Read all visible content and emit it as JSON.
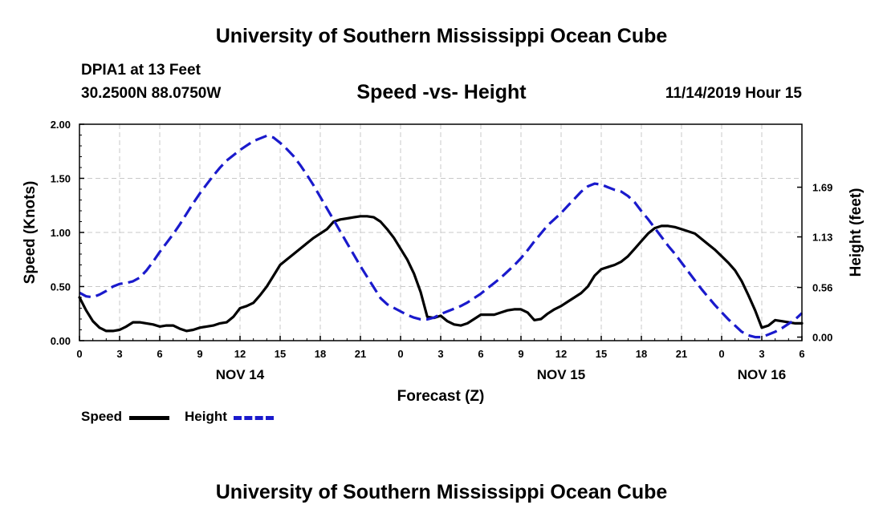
{
  "header": {
    "top_title": "University of Southern Mississippi Ocean Cube",
    "bottom_title": "University of Southern Mississippi Ocean Cube",
    "station": "DPIA1 at 13 Feet",
    "coords": "30.2500N 88.0750W",
    "chart_title": "Speed -vs- Height",
    "run_time": "11/14/2019 Hour 15"
  },
  "legend": {
    "speed_label": "Speed",
    "height_label": "Height"
  },
  "colors": {
    "speed": "#000000",
    "height": "#1a1acc",
    "grid": "#c8c8c8"
  },
  "chart_data": {
    "type": "line",
    "title": "Speed -vs- Height",
    "xlabel": "Forecast (Z)",
    "ylabel": "Speed (Knots)",
    "ylabel_right": "Height (feet)",
    "xlim": [
      0,
      54
    ],
    "ylim": [
      0,
      2.0
    ],
    "ylim_right": [
      -0.04,
      2.4
    ],
    "grid": true,
    "x_ticks": [
      0,
      3,
      6,
      9,
      12,
      15,
      18,
      21,
      24,
      27,
      30,
      33,
      36,
      39,
      42,
      45,
      48,
      51,
      54
    ],
    "x_tick_labels": [
      "0",
      "3",
      "6",
      "9",
      "12",
      "15",
      "18",
      "21",
      "0",
      "3",
      "6",
      "9",
      "12",
      "15",
      "18",
      "21",
      "0",
      "3",
      "6"
    ],
    "date_labels": [
      {
        "x": 12,
        "text": "NOV 14"
      },
      {
        "x": 36,
        "text": "NOV 15"
      },
      {
        "x": 51,
        "text": "NOV 16"
      }
    ],
    "y_ticks": [
      0,
      0.5,
      1.0,
      1.5,
      2.0
    ],
    "y_tick_labels": [
      "0.00",
      "0.50",
      "1.00",
      "1.50",
      "2.00"
    ],
    "y2_ticks": [
      0,
      0.56,
      1.13,
      1.69
    ],
    "y2_tick_labels": [
      "0.00",
      "0.56",
      "1.13",
      "1.69"
    ],
    "series": [
      {
        "name": "Speed",
        "axis": "left",
        "style": "solid",
        "x": [
          0,
          0.5,
          1,
          1.5,
          2,
          2.5,
          3,
          3.5,
          4,
          4.5,
          5,
          5.5,
          6,
          6.5,
          7,
          7.5,
          8,
          8.5,
          9,
          9.5,
          10,
          10.5,
          11,
          11.5,
          12,
          12.5,
          13,
          13.5,
          14,
          14.5,
          15,
          15.5,
          16,
          16.5,
          17,
          17.5,
          18,
          18.5,
          19,
          19.5,
          20,
          20.5,
          21,
          21.5,
          22,
          22.5,
          23,
          23.5,
          24,
          24.5,
          25,
          25.5,
          26,
          26.5,
          27,
          27.5,
          28,
          28.5,
          29,
          29.5,
          30,
          30.5,
          31,
          31.5,
          32,
          32.5,
          33,
          33.5,
          34,
          34.5,
          35,
          35.5,
          36,
          36.5,
          37,
          37.5,
          38,
          38.5,
          39,
          39.5,
          40,
          40.5,
          41,
          41.5,
          42,
          42.5,
          43,
          43.5,
          44,
          44.5,
          45,
          45.5,
          46,
          46.5,
          47,
          47.5,
          48,
          48.5,
          49,
          49.5,
          50,
          50.5,
          51,
          51.5,
          52,
          52.5,
          53,
          53.5,
          54
        ],
        "values": [
          0.4,
          0.28,
          0.18,
          0.12,
          0.09,
          0.09,
          0.1,
          0.13,
          0.17,
          0.17,
          0.16,
          0.15,
          0.13,
          0.14,
          0.14,
          0.11,
          0.09,
          0.1,
          0.12,
          0.13,
          0.14,
          0.16,
          0.17,
          0.22,
          0.3,
          0.32,
          0.35,
          0.42,
          0.5,
          0.6,
          0.7,
          0.75,
          0.8,
          0.85,
          0.9,
          0.95,
          0.99,
          1.03,
          1.1,
          1.12,
          1.13,
          1.14,
          1.15,
          1.15,
          1.14,
          1.1,
          1.03,
          0.95,
          0.85,
          0.75,
          0.62,
          0.45,
          0.22,
          0.21,
          0.23,
          0.18,
          0.15,
          0.14,
          0.16,
          0.2,
          0.24,
          0.24,
          0.24,
          0.26,
          0.28,
          0.29,
          0.29,
          0.26,
          0.19,
          0.2,
          0.25,
          0.29,
          0.32,
          0.36,
          0.4,
          0.44,
          0.5,
          0.6,
          0.66,
          0.68,
          0.7,
          0.73,
          0.78,
          0.85,
          0.92,
          0.99,
          1.04,
          1.06,
          1.06,
          1.05,
          1.03,
          1.01,
          0.99,
          0.94,
          0.89,
          0.84,
          0.78,
          0.72,
          0.65,
          0.55,
          0.42,
          0.28,
          0.12,
          0.14,
          0.19,
          0.18,
          0.17,
          0.16,
          0.16
        ]
      },
      {
        "name": "Height",
        "axis": "right",
        "style": "dashed",
        "x": [
          0,
          0.5,
          1,
          1.5,
          2,
          2.5,
          3,
          3.5,
          4,
          4.5,
          5,
          5.5,
          6,
          6.5,
          7,
          7.5,
          8,
          8.5,
          9,
          9.5,
          10,
          10.5,
          11,
          11.5,
          12,
          12.5,
          13,
          13.5,
          14,
          14.5,
          15,
          15.5,
          16,
          16.5,
          17,
          17.5,
          18,
          18.5,
          19,
          19.5,
          20,
          20.5,
          21,
          21.5,
          22,
          22.5,
          23,
          23.5,
          24,
          24.5,
          25,
          25.5,
          26,
          26.5,
          27,
          27.5,
          28,
          28.5,
          29,
          29.5,
          30,
          30.5,
          31,
          31.5,
          32,
          32.5,
          33,
          33.5,
          34,
          34.5,
          35,
          35.5,
          36,
          36.5,
          37,
          37.5,
          38,
          38.5,
          39,
          39.5,
          40,
          40.5,
          41,
          41.5,
          42,
          42.5,
          43,
          43.5,
          44,
          44.5,
          45,
          45.5,
          46,
          46.5,
          47,
          47.5,
          48,
          48.5,
          49,
          49.5,
          50,
          50.5,
          51,
          51.5,
          52,
          52.5,
          53,
          53.5,
          54
        ],
        "values": [
          0.5,
          0.46,
          0.45,
          0.48,
          0.52,
          0.57,
          0.6,
          0.61,
          0.63,
          0.67,
          0.75,
          0.85,
          0.96,
          1.06,
          1.16,
          1.27,
          1.39,
          1.51,
          1.62,
          1.72,
          1.82,
          1.91,
          1.99,
          2.05,
          2.11,
          2.16,
          2.21,
          2.24,
          2.27,
          2.25,
          2.19,
          2.12,
          2.04,
          1.94,
          1.83,
          1.71,
          1.58,
          1.45,
          1.32,
          1.19,
          1.06,
          0.93,
          0.8,
          0.68,
          0.56,
          0.44,
          0.37,
          0.33,
          0.29,
          0.25,
          0.22,
          0.2,
          0.2,
          0.22,
          0.26,
          0.29,
          0.32,
          0.35,
          0.39,
          0.44,
          0.49,
          0.55,
          0.61,
          0.67,
          0.74,
          0.81,
          0.89,
          0.98,
          1.08,
          1.17,
          1.26,
          1.33,
          1.4,
          1.48,
          1.56,
          1.64,
          1.7,
          1.73,
          1.72,
          1.69,
          1.66,
          1.64,
          1.59,
          1.52,
          1.42,
          1.33,
          1.23,
          1.13,
          1.03,
          0.94,
          0.84,
          0.74,
          0.64,
          0.54,
          0.45,
          0.36,
          0.28,
          0.2,
          0.13,
          0.06,
          0.02,
          0.0,
          0.0,
          0.03,
          0.06,
          0.1,
          0.15,
          0.2,
          0.27
        ]
      }
    ]
  }
}
